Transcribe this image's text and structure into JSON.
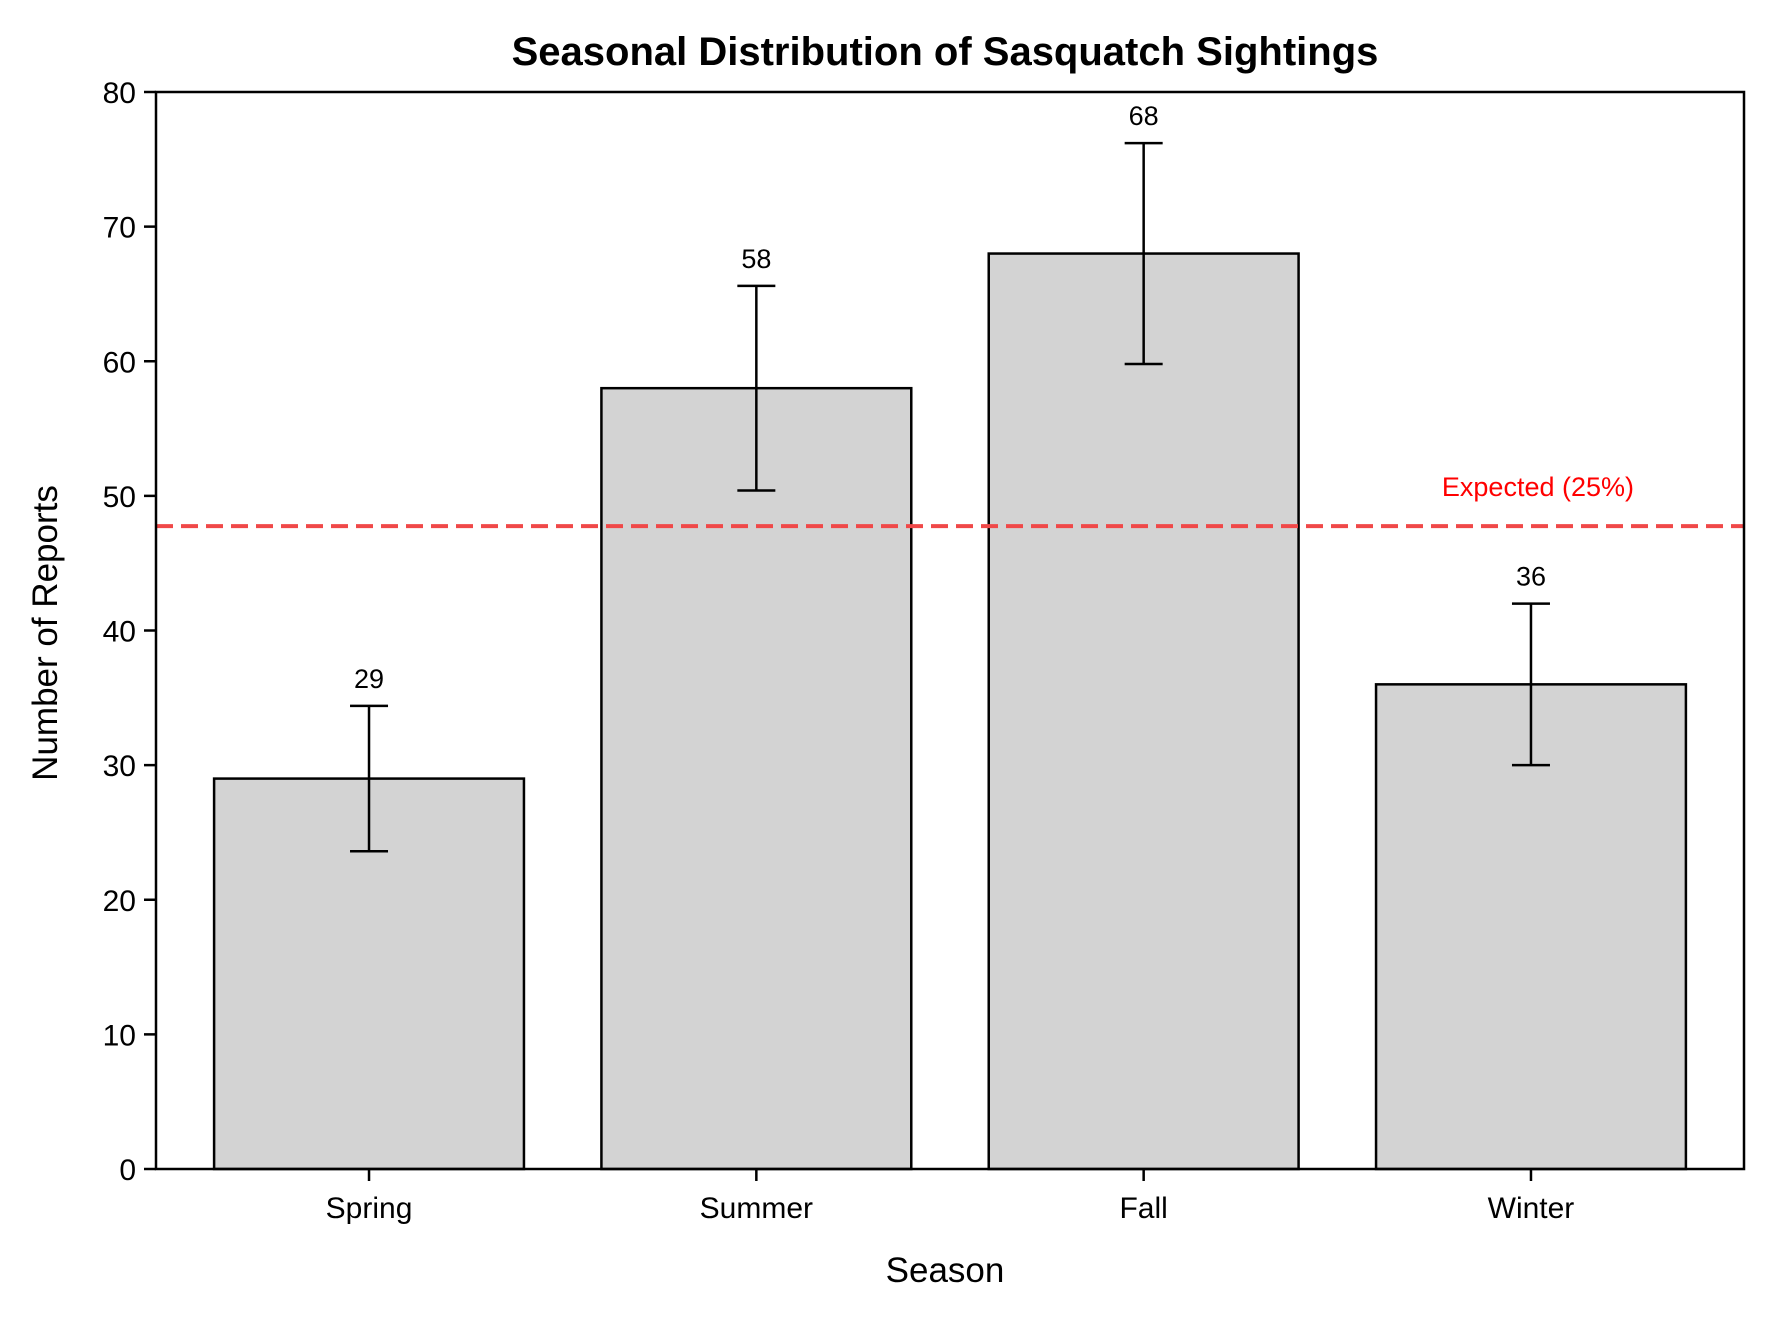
{
  "chart_data": {
    "type": "bar",
    "title": "Seasonal Distribution of Sasquatch Sightings",
    "xlabel": "Season",
    "ylabel": "Number of Reports",
    "categories": [
      "Spring",
      "Summer",
      "Fall",
      "Winter"
    ],
    "values": [
      29,
      58,
      68,
      36
    ],
    "error_bars": [
      {
        "low": 23.6,
        "high": 34.4
      },
      {
        "low": 50.4,
        "high": 65.6
      },
      {
        "low": 59.8,
        "high": 76.2
      },
      {
        "low": 30.0,
        "high": 42.0
      }
    ],
    "data_labels": [
      "29",
      "58",
      "68",
      "36"
    ],
    "ylim": [
      0,
      80
    ],
    "yticks": [
      0,
      10,
      20,
      30,
      40,
      50,
      60,
      70,
      80
    ],
    "grid": false,
    "legend": "none",
    "reference_line": {
      "value": 47.75,
      "label": "Expected (25%)",
      "style": "dashed"
    },
    "colors": {
      "bar_fill": "#d3d3d3",
      "bar_edge": "#000000",
      "error_bar": "#000000",
      "reference_line": "#f04848",
      "reference_label": "#ff0000"
    }
  }
}
